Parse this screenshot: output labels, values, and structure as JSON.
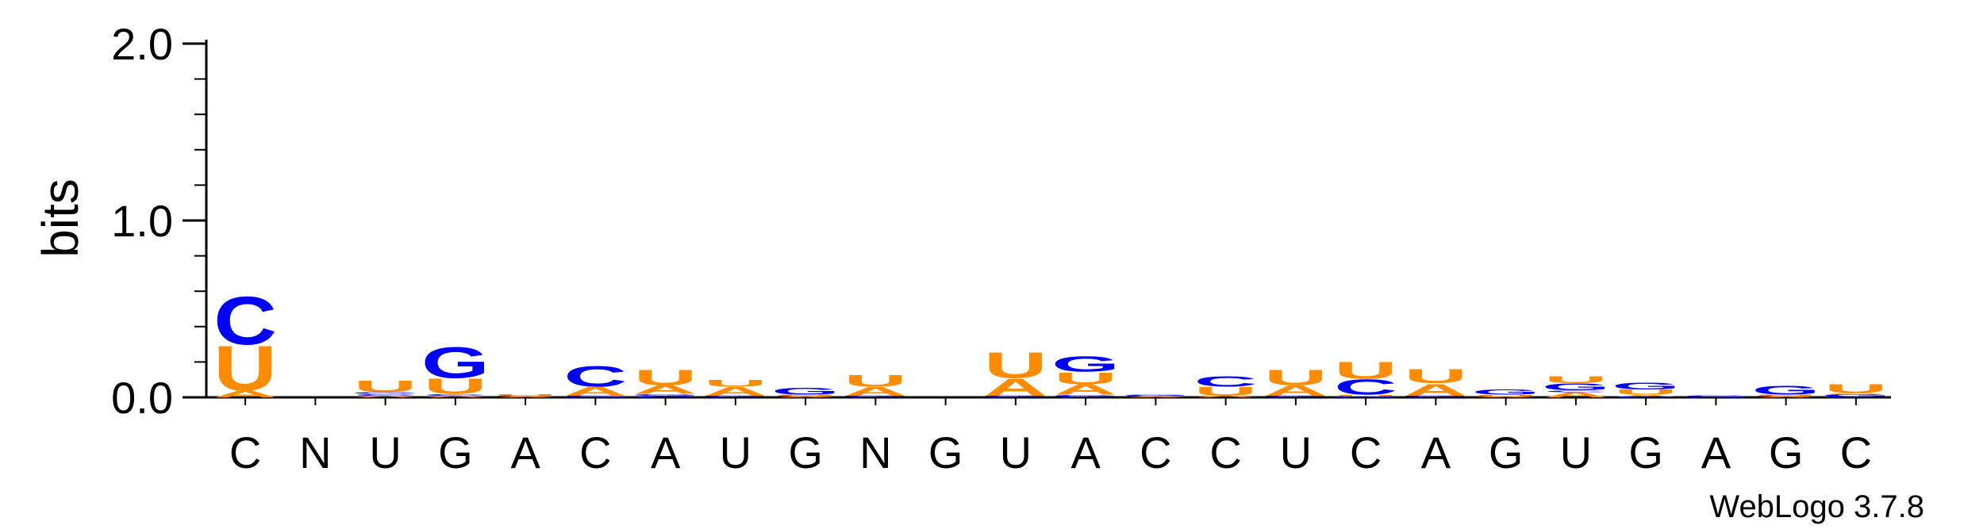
{
  "chart_data": {
    "type": "sequence-logo",
    "ylabel": "bits",
    "ylim": [
      0,
      2.0
    ],
    "yticks": [
      "0.0",
      "1.0",
      "2.0"
    ],
    "categories": [
      "C",
      "N",
      "U",
      "G",
      "A",
      "C",
      "A",
      "U",
      "G",
      "N",
      "G",
      "U",
      "A",
      "C",
      "C",
      "U",
      "C",
      "A",
      "G",
      "U",
      "G",
      "A",
      "G",
      "C"
    ],
    "colors": {
      "A": "#ff8c00",
      "U": "#ff8c00",
      "C": "#0000ff",
      "G": "#0000ff"
    },
    "stacks": [
      [
        [
          "A",
          0.04
        ],
        [
          "U",
          0.26
        ],
        [
          "C",
          0.28
        ]
      ],
      [],
      [
        [
          "A",
          0.01
        ],
        [
          "C",
          0.01
        ],
        [
          "G",
          0.01
        ],
        [
          "U",
          0.07
        ]
      ],
      [
        [
          "A",
          0.01
        ],
        [
          "C",
          0.01
        ],
        [
          "U",
          0.09
        ],
        [
          "G",
          0.18
        ]
      ],
      [
        [
          "A",
          0.005
        ],
        [
          "C",
          0.005
        ],
        [
          "U",
          0.01
        ]
      ],
      [
        [
          "G",
          0.005
        ],
        [
          "C",
          0.005
        ],
        [
          "A",
          0.05
        ],
        [
          "C",
          0.12
        ]
      ],
      [
        [
          "C",
          0.01
        ],
        [
          "G",
          0.01
        ],
        [
          "A",
          0.05
        ],
        [
          "U",
          0.09
        ]
      ],
      [
        [
          "C",
          0.005
        ],
        [
          "G",
          0.005
        ],
        [
          "A",
          0.05
        ],
        [
          "U",
          0.04
        ]
      ],
      [
        [
          "A",
          0.005
        ],
        [
          "C",
          0.005
        ],
        [
          "U",
          0.005
        ],
        [
          "G",
          0.04
        ]
      ],
      [
        [
          "C",
          0.005
        ],
        [
          "G",
          0.005
        ],
        [
          "A",
          0.05
        ],
        [
          "U",
          0.07
        ]
      ],
      [],
      [
        [
          "C",
          0.005
        ],
        [
          "G",
          0.005
        ],
        [
          "A",
          0.1
        ],
        [
          "U",
          0.15
        ]
      ],
      [
        [
          "C",
          0.005
        ],
        [
          "G",
          0.01
        ],
        [
          "A",
          0.06
        ],
        [
          "U",
          0.07
        ],
        [
          "G",
          0.09
        ]
      ],
      [
        [
          "A",
          0.005
        ],
        [
          "C",
          0.005
        ],
        [
          "G",
          0.005
        ]
      ],
      [
        [
          "A",
          0.01
        ],
        [
          "U",
          0.05
        ],
        [
          "C",
          0.06
        ]
      ],
      [
        [
          "C",
          0.005
        ],
        [
          "G",
          0.005
        ],
        [
          "A",
          0.06
        ],
        [
          "U",
          0.09
        ]
      ],
      [
        [
          "G",
          0.005
        ],
        [
          "U",
          0.01
        ],
        [
          "C",
          0.09
        ],
        [
          "U",
          0.1
        ]
      ],
      [
        [
          "C",
          0.005
        ],
        [
          "G",
          0.005
        ],
        [
          "A",
          0.07
        ],
        [
          "U",
          0.08
        ]
      ],
      [
        [
          "A",
          0.005
        ],
        [
          "U",
          0.01
        ],
        [
          "G",
          0.03
        ]
      ],
      [
        [
          "A",
          0.03
        ],
        [
          "C",
          0.01
        ],
        [
          "G",
          0.04
        ],
        [
          "U",
          0.04
        ]
      ],
      [
        [
          "C",
          0.005
        ],
        [
          "A",
          0.01
        ],
        [
          "U",
          0.03
        ],
        [
          "G",
          0.04
        ]
      ],
      [
        [
          "G",
          0.005
        ],
        [
          "C",
          0.005
        ]
      ],
      [
        [
          "A",
          0.005
        ],
        [
          "C",
          0.005
        ],
        [
          "U",
          0.005
        ],
        [
          "G",
          0.05
        ]
      ],
      [
        [
          "C",
          0.005
        ],
        [
          "G",
          0.015
        ],
        [
          "A",
          0.005
        ],
        [
          "U",
          0.05
        ]
      ]
    ]
  },
  "credit": "WebLogo 3.7.8"
}
